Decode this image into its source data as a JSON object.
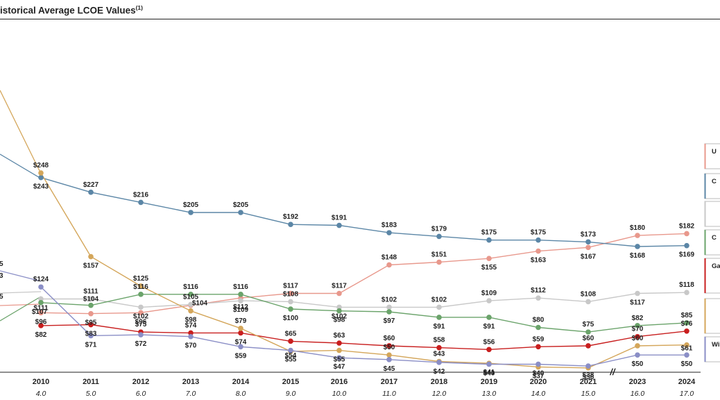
{
  "header": {
    "title": "istorical Average LCOE Values",
    "footnote": "(1)"
  },
  "chart_data": {
    "type": "line",
    "title": "istorical Average LCOE Values",
    "xlabel": "",
    "ylabel": "",
    "axis_break_marker": "//",
    "categories": [
      "2010",
      "2011",
      "2012",
      "2013",
      "2014",
      "2015",
      "2016",
      "2017",
      "2018",
      "2019",
      "2020",
      "2021",
      "2023",
      "2024"
    ],
    "x_index": [
      "4.0",
      "5.0",
      "6.0",
      "7.0",
      "8.0",
      "9.0",
      "10.0",
      "11.0",
      "12.0",
      "13.0",
      "14.0",
      "15.0",
      "16.0",
      "17.0"
    ],
    "ylim": [
      25,
      290
    ],
    "series": [
      {
        "name": "U",
        "color": "#e8988c",
        "values": [
          96,
          95,
          96,
          104,
          112,
          117,
          117,
          148,
          151,
          155,
          163,
          167,
          180,
          182
        ],
        "labels": [
          "$96",
          "$95",
          "$96",
          "$104",
          "$112",
          "$117",
          "$117",
          "$148",
          "$151",
          "$155",
          "$163",
          "$167",
          "$180",
          "$182"
        ]
      },
      {
        "name": "C",
        "color": "#5b86a6",
        "values": [
          243,
          227,
          216,
          205,
          205,
          192,
          191,
          183,
          179,
          175,
          175,
          173,
          168,
          169
        ],
        "labels": [
          "$243",
          "$227",
          "$216",
          "$205",
          "$205",
          "$192",
          "$191",
          "$183",
          "$179",
          "$175",
          "$175",
          "$173",
          "$168",
          "$169"
        ]
      },
      {
        "name": "",
        "color": "#c8c8c8",
        "values": [
          111,
          111,
          102,
          105,
          109,
          108,
          102,
          102,
          102,
          109,
          112,
          108,
          117,
          118
        ],
        "labels": [
          "$111",
          "$111",
          "$102",
          "$105",
          "$109",
          "$108",
          "$102",
          "$102",
          "$102",
          "$109",
          "$112",
          "$108",
          "$117",
          "$118"
        ]
      },
      {
        "name": "C",
        "color": "#6aa36a",
        "values": [
          107,
          104,
          116,
          116,
          116,
          100,
          98,
          97,
          91,
          91,
          80,
          75,
          82,
          85
        ],
        "labels": [
          "$107",
          "$104",
          "$116",
          "$116",
          "$116",
          "$100",
          "$98",
          "$97",
          "$91",
          "$91",
          "$80",
          "$75",
          "$82",
          "$85"
        ]
      },
      {
        "name": "Ga",
        "color": "#c81e1e",
        "values": [
          82,
          83,
          75,
          74,
          74,
          65,
          63,
          60,
          58,
          56,
          59,
          60,
          70,
          76
        ],
        "labels": [
          "$82",
          "$83",
          "$75",
          "$74",
          "$74",
          "$65",
          "$63",
          "$60",
          "$58",
          "$56",
          "$59",
          "$60",
          "$70",
          "$76"
        ]
      },
      {
        "name": "",
        "color": "#d4a65a",
        "values": [
          248,
          157,
          125,
          98,
          79,
          54,
          55,
          50,
          43,
          41,
          37,
          36,
          60,
          61
        ],
        "labels": [
          "$248",
          "$157",
          "$125",
          "$98",
          "$79",
          "$54",
          "$55",
          "$50",
          "$43",
          "$41",
          "$37",
          "$36",
          "$60",
          "$61"
        ]
      },
      {
        "name": "Wi",
        "color": "#8a8ec6",
        "values": [
          124,
          71,
          72,
          70,
          59,
          55,
          47,
          45,
          42,
          40,
          40,
          38,
          50,
          50
        ],
        "labels": [
          "$124",
          "$71",
          "$72",
          "$70",
          "$59",
          "$55",
          "$47",
          "$45",
          "$42",
          "$40",
          "$40",
          "$38",
          "$50",
          "$50"
        ]
      }
    ],
    "partial_left_labels": [
      "5",
      "3",
      "5"
    ],
    "grid": false,
    "legend": "right"
  }
}
